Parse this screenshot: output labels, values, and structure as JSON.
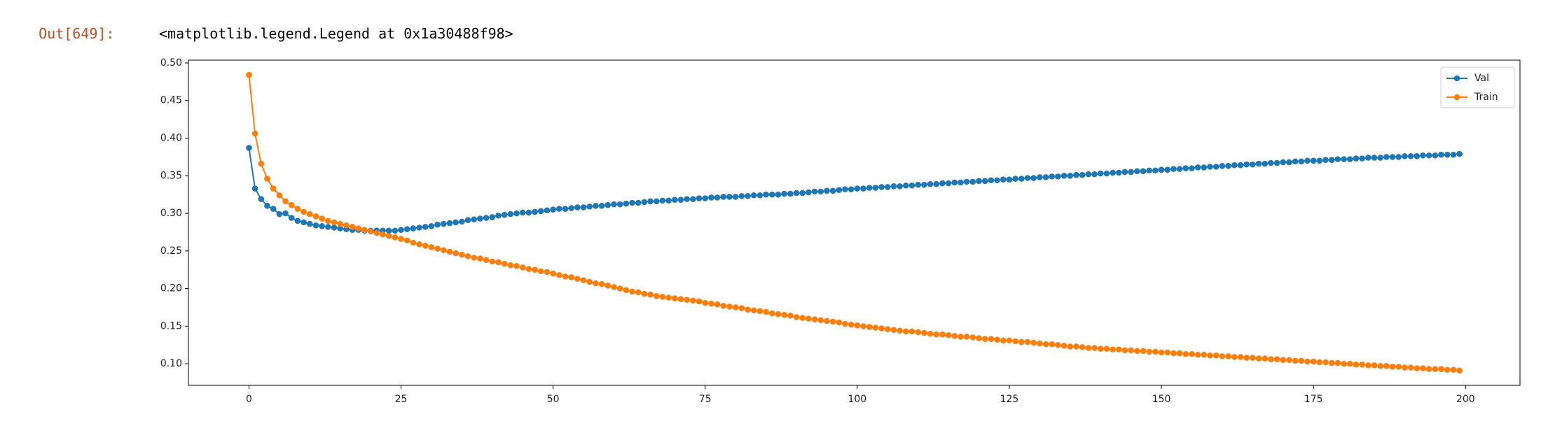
{
  "output": {
    "prompt": "Out[649]:",
    "text": "<matplotlib.legend.Legend at 0x1a30488f98>"
  },
  "chart_data": {
    "type": "line",
    "x": [
      0,
      1,
      2,
      3,
      4,
      5,
      6,
      7,
      8,
      9,
      10,
      11,
      12,
      13,
      14,
      15,
      16,
      17,
      18,
      19,
      20,
      21,
      22,
      23,
      24,
      25,
      26,
      27,
      28,
      29,
      30,
      31,
      32,
      33,
      34,
      35,
      36,
      37,
      38,
      39,
      40,
      41,
      42,
      43,
      44,
      45,
      46,
      47,
      48,
      49,
      50,
      51,
      52,
      53,
      54,
      55,
      56,
      57,
      58,
      59,
      60,
      61,
      62,
      63,
      64,
      65,
      66,
      67,
      68,
      69,
      70,
      71,
      72,
      73,
      74,
      75,
      76,
      77,
      78,
      79,
      80,
      81,
      82,
      83,
      84,
      85,
      86,
      87,
      88,
      89,
      90,
      91,
      92,
      93,
      94,
      95,
      96,
      97,
      98,
      99,
      100,
      101,
      102,
      103,
      104,
      105,
      106,
      107,
      108,
      109,
      110,
      111,
      112,
      113,
      114,
      115,
      116,
      117,
      118,
      119,
      120,
      121,
      122,
      123,
      124,
      125,
      126,
      127,
      128,
      129,
      130,
      131,
      132,
      133,
      134,
      135,
      136,
      137,
      138,
      139,
      140,
      141,
      142,
      143,
      144,
      145,
      146,
      147,
      148,
      149,
      150,
      151,
      152,
      153,
      154,
      155,
      156,
      157,
      158,
      159,
      160,
      161,
      162,
      163,
      164,
      165,
      166,
      167,
      168,
      169,
      170,
      171,
      172,
      173,
      174,
      175,
      176,
      177,
      178,
      179,
      180,
      181,
      182,
      183,
      184,
      185,
      186,
      187,
      188,
      189,
      190,
      191,
      192,
      193,
      194,
      195,
      196,
      197,
      198,
      199
    ],
    "series": [
      {
        "name": "Val",
        "color": "#1f77b4",
        "values": [
          0.387,
          0.333,
          0.319,
          0.31,
          0.306,
          0.299,
          0.3,
          0.294,
          0.29,
          0.288,
          0.286,
          0.284,
          0.283,
          0.282,
          0.281,
          0.28,
          0.279,
          0.278,
          0.278,
          0.277,
          0.277,
          0.277,
          0.277,
          0.277,
          0.277,
          0.278,
          0.279,
          0.28,
          0.281,
          0.282,
          0.283,
          0.285,
          0.286,
          0.287,
          0.288,
          0.289,
          0.291,
          0.292,
          0.293,
          0.294,
          0.295,
          0.297,
          0.298,
          0.299,
          0.3,
          0.301,
          0.301,
          0.302,
          0.303,
          0.304,
          0.305,
          0.306,
          0.306,
          0.307,
          0.308,
          0.308,
          0.309,
          0.31,
          0.31,
          0.311,
          0.312,
          0.312,
          0.313,
          0.314,
          0.314,
          0.315,
          0.316,
          0.316,
          0.317,
          0.317,
          0.318,
          0.318,
          0.319,
          0.319,
          0.32,
          0.32,
          0.321,
          0.321,
          0.322,
          0.322,
          0.322,
          0.323,
          0.323,
          0.324,
          0.324,
          0.325,
          0.325,
          0.325,
          0.326,
          0.326,
          0.327,
          0.327,
          0.328,
          0.329,
          0.329,
          0.33,
          0.33,
          0.331,
          0.332,
          0.332,
          0.333,
          0.333,
          0.334,
          0.334,
          0.335,
          0.335,
          0.336,
          0.336,
          0.337,
          0.337,
          0.338,
          0.338,
          0.339,
          0.339,
          0.34,
          0.34,
          0.341,
          0.341,
          0.342,
          0.342,
          0.343,
          0.343,
          0.344,
          0.344,
          0.345,
          0.345,
          0.346,
          0.346,
          0.347,
          0.347,
          0.348,
          0.348,
          0.349,
          0.349,
          0.35,
          0.35,
          0.351,
          0.351,
          0.352,
          0.352,
          0.353,
          0.353,
          0.354,
          0.354,
          0.355,
          0.355,
          0.356,
          0.356,
          0.357,
          0.357,
          0.358,
          0.358,
          0.359,
          0.359,
          0.36,
          0.36,
          0.361,
          0.361,
          0.362,
          0.362,
          0.363,
          0.363,
          0.364,
          0.364,
          0.365,
          0.365,
          0.366,
          0.366,
          0.367,
          0.367,
          0.368,
          0.368,
          0.369,
          0.369,
          0.37,
          0.37,
          0.37,
          0.371,
          0.371,
          0.372,
          0.372,
          0.372,
          0.373,
          0.373,
          0.374,
          0.374,
          0.374,
          0.375,
          0.375,
          0.375,
          0.376,
          0.376,
          0.376,
          0.377,
          0.377,
          0.377,
          0.378,
          0.378,
          0.378,
          0.379
        ]
      },
      {
        "name": "Train",
        "color": "#ff7f0e",
        "values": [
          0.484,
          0.406,
          0.366,
          0.346,
          0.333,
          0.324,
          0.316,
          0.311,
          0.306,
          0.302,
          0.299,
          0.296,
          0.293,
          0.29,
          0.288,
          0.286,
          0.284,
          0.282,
          0.28,
          0.278,
          0.276,
          0.274,
          0.272,
          0.27,
          0.268,
          0.266,
          0.264,
          0.261,
          0.259,
          0.257,
          0.255,
          0.253,
          0.251,
          0.249,
          0.247,
          0.245,
          0.243,
          0.241,
          0.24,
          0.238,
          0.236,
          0.235,
          0.233,
          0.231,
          0.23,
          0.228,
          0.226,
          0.225,
          0.223,
          0.222,
          0.22,
          0.218,
          0.216,
          0.215,
          0.213,
          0.211,
          0.209,
          0.207,
          0.206,
          0.204,
          0.202,
          0.2,
          0.198,
          0.196,
          0.195,
          0.193,
          0.192,
          0.19,
          0.189,
          0.188,
          0.187,
          0.186,
          0.185,
          0.184,
          0.183,
          0.181,
          0.18,
          0.179,
          0.177,
          0.176,
          0.175,
          0.174,
          0.172,
          0.171,
          0.17,
          0.169,
          0.167,
          0.166,
          0.165,
          0.164,
          0.162,
          0.161,
          0.16,
          0.159,
          0.158,
          0.157,
          0.156,
          0.155,
          0.153,
          0.152,
          0.151,
          0.15,
          0.149,
          0.148,
          0.147,
          0.146,
          0.145,
          0.144,
          0.143,
          0.143,
          0.142,
          0.141,
          0.14,
          0.139,
          0.139,
          0.138,
          0.137,
          0.136,
          0.136,
          0.135,
          0.134,
          0.133,
          0.133,
          0.132,
          0.131,
          0.131,
          0.13,
          0.129,
          0.129,
          0.128,
          0.127,
          0.126,
          0.126,
          0.125,
          0.124,
          0.123,
          0.123,
          0.122,
          0.121,
          0.121,
          0.12,
          0.12,
          0.119,
          0.119,
          0.118,
          0.118,
          0.117,
          0.117,
          0.116,
          0.116,
          0.115,
          0.115,
          0.114,
          0.114,
          0.113,
          0.113,
          0.112,
          0.112,
          0.111,
          0.111,
          0.11,
          0.11,
          0.109,
          0.109,
          0.108,
          0.108,
          0.107,
          0.107,
          0.106,
          0.106,
          0.105,
          0.105,
          0.104,
          0.104,
          0.103,
          0.103,
          0.102,
          0.102,
          0.101,
          0.101,
          0.1,
          0.1,
          0.099,
          0.099,
          0.098,
          0.098,
          0.097,
          0.097,
          0.096,
          0.096,
          0.095,
          0.095,
          0.094,
          0.094,
          0.093,
          0.093,
          0.093,
          0.092,
          0.092,
          0.091
        ]
      }
    ],
    "xlim": [
      -9.95,
      208.95
    ],
    "xticks": [
      0,
      25,
      50,
      75,
      100,
      125,
      150,
      175,
      200
    ],
    "ylim": [
      0.0713,
      0.5037
    ],
    "yticks": [
      {
        "value": 0.1,
        "label": "0.10"
      },
      0.15,
      {
        "value": 0.2,
        "label": "0.20"
      },
      0.25,
      {
        "value": 0.3,
        "label": "0.30"
      },
      0.35,
      {
        "value": 0.4,
        "label": "0.40"
      },
      0.45,
      {
        "value": 0.5,
        "label": "0.50"
      }
    ],
    "grid": false,
    "legend": "upper right",
    "markers": true
  }
}
